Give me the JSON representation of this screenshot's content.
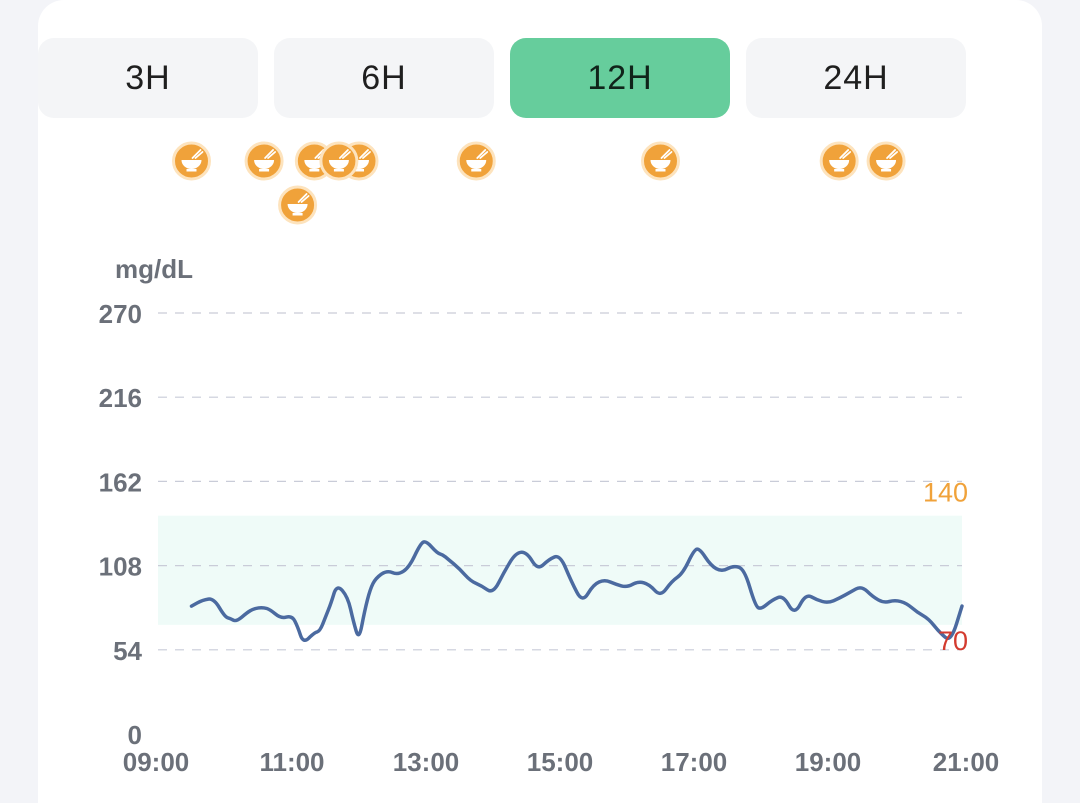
{
  "tabs": [
    {
      "label": "3H",
      "active": false
    },
    {
      "label": "6H",
      "active": false
    },
    {
      "label": "12H",
      "active": true
    },
    {
      "label": "24H",
      "active": false
    }
  ],
  "meal_icon": "meal-bowl-icon",
  "meal_color": "#f0a23a",
  "chart_data": {
    "type": "line",
    "ylabel": "mg/dL",
    "ylim": [
      0,
      270
    ],
    "yticks": [
      "270",
      "216",
      "162",
      "108",
      "54",
      "0"
    ],
    "xlim": [
      "09:00",
      "21:00"
    ],
    "xticks": [
      "09:00",
      "11:00",
      "13:00",
      "15:00",
      "17:00",
      "19:00",
      "21:00"
    ],
    "grid": true,
    "line_color": "#4b6aa0",
    "target_range": {
      "low": 70,
      "high": 140,
      "low_label": "70",
      "high_label": "140",
      "low_color": "#d33b2f",
      "high_color": "#f0a23a",
      "fill": "#effbf8"
    },
    "meal_times": [
      "09:30",
      "11:20",
      "12:00",
      "10:35",
      "11:05",
      "11:42",
      "13:45",
      "16:30",
      "19:10",
      "19:52"
    ],
    "meal_rows": [
      0,
      0,
      0,
      0,
      1,
      0,
      0,
      0,
      0,
      0
    ],
    "series": [
      {
        "x": [
          "09:30",
          "09:40",
          "09:50",
          "10:00",
          "10:05",
          "10:10",
          "10:20",
          "10:25",
          "10:30",
          "10:35",
          "10:40",
          "10:50",
          "11:00",
          "11:05",
          "11:10",
          "11:20",
          "11:25",
          "11:30",
          "11:35",
          "11:40",
          "11:50",
          "11:55",
          "12:00",
          "12:05",
          "12:10",
          "12:15",
          "12:25",
          "12:35",
          "12:45",
          "12:55",
          "13:00",
          "13:10",
          "13:15",
          "13:20",
          "13:30",
          "13:40",
          "13:50",
          "14:00",
          "14:10",
          "14:20",
          "14:30",
          "14:40",
          "14:50",
          "15:00",
          "15:10",
          "15:20",
          "15:30",
          "15:40",
          "15:50",
          "16:00",
          "16:10",
          "16:20",
          "16:30",
          "16:40",
          "16:50",
          "17:00",
          "17:05",
          "17:15",
          "17:25",
          "17:35",
          "17:45",
          "17:55",
          "18:00",
          "18:10",
          "18:20",
          "18:30",
          "18:40",
          "18:50",
          "19:00",
          "19:10",
          "19:20",
          "19:30",
          "19:40",
          "19:50",
          "20:00",
          "20:10",
          "20:20",
          "20:30",
          "20:40",
          "20:50",
          "21:00"
        ],
        "y": [
          82,
          86,
          87,
          75,
          74,
          72,
          78,
          80,
          81,
          81,
          80,
          74,
          76,
          69,
          58,
          65,
          66,
          75,
          84,
          96,
          88,
          72,
          60,
          79,
          93,
          100,
          105,
          102,
          107,
          122,
          124,
          116,
          115,
          112,
          106,
          98,
          95,
          90,
          104,
          116,
          117,
          105,
          112,
          115,
          98,
          84,
          96,
          99,
          96,
          94,
          98,
          96,
          88,
          98,
          103,
          118,
          119,
          108,
          104,
          108,
          106,
          82,
          80,
          86,
          89,
          76,
          90,
          86,
          84,
          87,
          91,
          95,
          88,
          84,
          86,
          84,
          78,
          74,
          65,
          59,
          82
        ]
      }
    ]
  }
}
